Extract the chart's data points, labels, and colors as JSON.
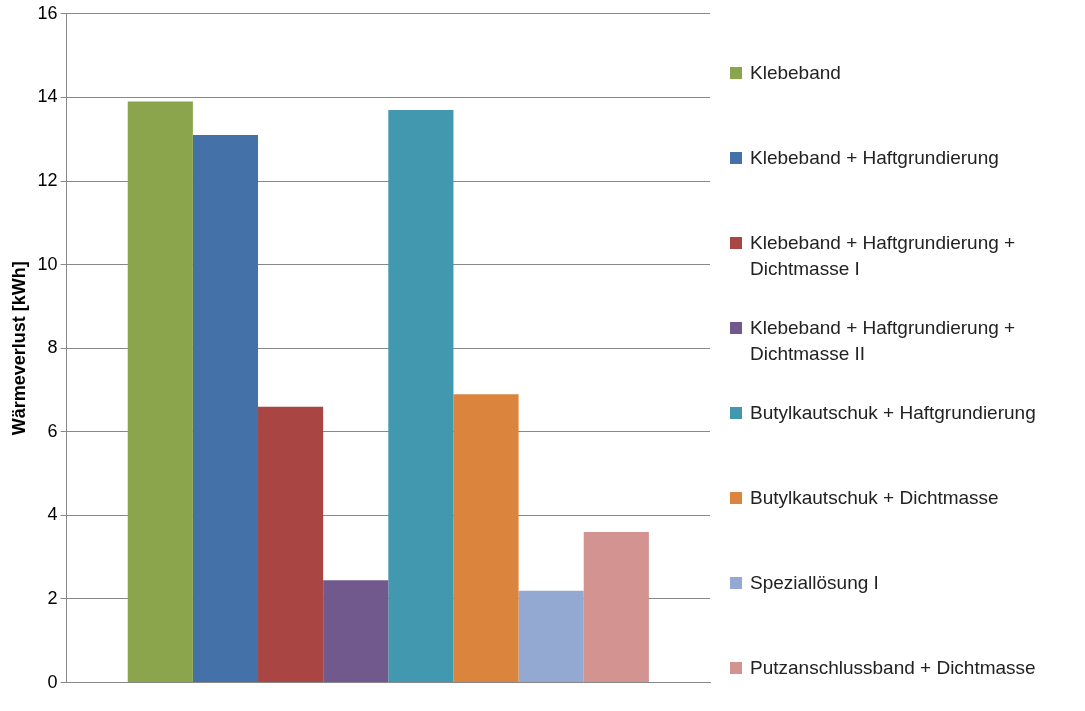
{
  "chart_data": {
    "type": "bar",
    "ylabel": "Wärmeverlust [kWh]",
    "categories": [
      null
    ],
    "series": [
      {
        "name": "Klebeband",
        "color": "#8aa54c",
        "values": [
          13.9
        ]
      },
      {
        "name": "Klebeband + Haftgrundierung",
        "color": "#4472a8",
        "values": [
          13.1
        ]
      },
      {
        "name": "Klebeband + Haftgrundierung + Dichtmasse I",
        "color": "#a94644",
        "values": [
          6.6
        ]
      },
      {
        "name": "Klebeband + Haftgrundierung + Dichtmasse II",
        "color": "#71598e",
        "values": [
          2.45
        ]
      },
      {
        "name": "Butylkautschuk + Haftgrundierung",
        "color": "#4298ae",
        "values": [
          13.7
        ]
      },
      {
        "name": "Butylkautschuk + Dichtmasse",
        "color": "#db843d",
        "values": [
          6.9
        ]
      },
      {
        "name": "Speziallösung I",
        "color": "#94a9d1",
        "values": [
          2.2
        ]
      },
      {
        "name": "Putzanschlussband + Dichtmasse",
        "color": "#d29391",
        "values": [
          3.6
        ]
      }
    ],
    "ylim": [
      0,
      16
    ],
    "yticks": [
      0,
      2,
      4,
      6,
      8,
      10,
      12,
      14,
      16
    ],
    "grid": "y",
    "legend": "right"
  }
}
